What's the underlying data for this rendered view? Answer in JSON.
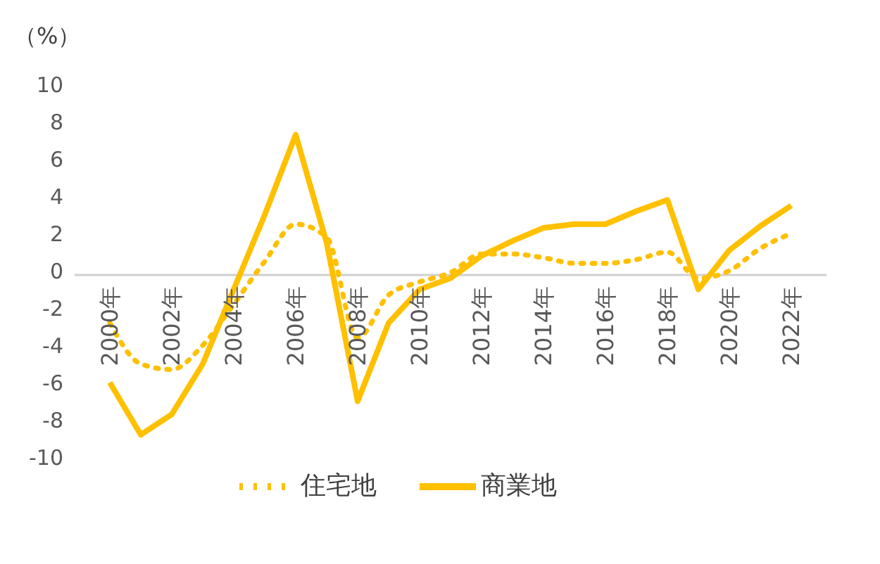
{
  "chart_data": {
    "type": "line",
    "ylabel": "（%）",
    "categories": [
      "2000年",
      null,
      "2002年",
      null,
      "2004年",
      null,
      "2006年",
      null,
      "2008年",
      null,
      "2010年",
      null,
      "2012年",
      null,
      "2014年",
      null,
      "2016年",
      null,
      "2018年",
      null,
      "2020年",
      null,
      "2022年"
    ],
    "series": [
      {
        "name": "住宅地",
        "color": "#ffc000",
        "line_style": "dotted",
        "values": [
          -2.8,
          -5.0,
          -5.3,
          -4.0,
          -1.8,
          0.5,
          2.5,
          1.8,
          -3.6,
          -1.3,
          -0.6,
          -0.1,
          0.9,
          0.9,
          0.7,
          0.4,
          0.4,
          0.6,
          1.0,
          -0.4,
          0.0,
          1.2,
          2.0
        ]
      },
      {
        "name": "商業地",
        "color": "#ffc000",
        "line_style": "solid",
        "values": [
          -6.0,
          -8.8,
          -7.7,
          -5.0,
          -1.0,
          3.0,
          7.3,
          1.5,
          -7.0,
          -2.8,
          -1.0,
          -0.4,
          0.8,
          1.6,
          2.3,
          2.5,
          2.5,
          3.2,
          3.8,
          -1.0,
          1.1,
          2.4,
          3.5
        ]
      }
    ],
    "ylim": [
      -10,
      10
    ],
    "yticks": [
      -10,
      -8,
      -6,
      -4,
      -2,
      0,
      2,
      4,
      6,
      8,
      10
    ],
    "grid": false,
    "legend": "bottom",
    "marker": "none"
  }
}
